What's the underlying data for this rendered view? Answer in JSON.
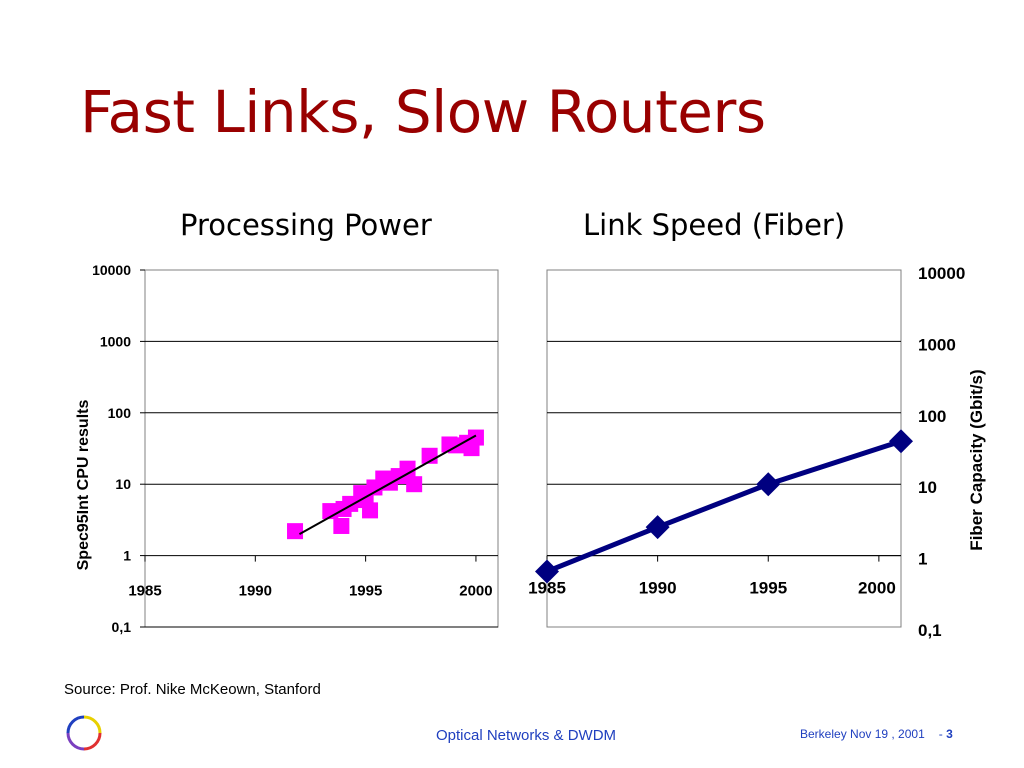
{
  "slide": {
    "title": "Fast Links, Slow Routers",
    "source": "Source: Prof. Nike McKeown, Stanford",
    "footer_center": "Optical Networks & DWDM",
    "footer_date": "Berkeley Nov 19 , 2001",
    "footer_separator": "-",
    "page_number": "3"
  },
  "chart_data": [
    {
      "type": "scatter",
      "title": "Processing Power",
      "ylabel": "Spec95Int CPU results",
      "xlabel": "",
      "y_scale": "log",
      "ylim": [
        0.1,
        10000
      ],
      "xlim": [
        1985,
        2001
      ],
      "y_ticks": [
        "10000",
        "1000",
        "100",
        "10",
        "1",
        "0,1"
      ],
      "x_ticks": [
        "1985",
        "1990",
        "1995",
        "2000"
      ],
      "grid": true,
      "marker_color": "#ff00ff",
      "trend_color": "#000000",
      "points": [
        {
          "x": 1991.8,
          "y": 2.2
        },
        {
          "x": 1993.4,
          "y": 4.2
        },
        {
          "x": 1993.9,
          "y": 2.6
        },
        {
          "x": 1994.0,
          "y": 4.5
        },
        {
          "x": 1994.3,
          "y": 5.3
        },
        {
          "x": 1994.8,
          "y": 7.5
        },
        {
          "x": 1995.0,
          "y": 6.0
        },
        {
          "x": 1995.2,
          "y": 4.3
        },
        {
          "x": 1995.4,
          "y": 9.0
        },
        {
          "x": 1995.8,
          "y": 12.0
        },
        {
          "x": 1996.1,
          "y": 10.5
        },
        {
          "x": 1996.5,
          "y": 13.0
        },
        {
          "x": 1996.9,
          "y": 16.5
        },
        {
          "x": 1997.2,
          "y": 10.0
        },
        {
          "x": 1997.9,
          "y": 25.0
        },
        {
          "x": 1998.8,
          "y": 36.0
        },
        {
          "x": 1999.1,
          "y": 35.0
        },
        {
          "x": 1999.6,
          "y": 38.0
        },
        {
          "x": 1999.8,
          "y": 32.0
        },
        {
          "x": 2000.0,
          "y": 45.0
        }
      ],
      "trend": [
        {
          "x": 1992.0,
          "y": 2.0
        },
        {
          "x": 2000.0,
          "y": 48.0
        }
      ]
    },
    {
      "type": "line",
      "title": "Link Speed (Fiber)",
      "ylabel": "Fiber Capacity (Gbit/s)",
      "xlabel": "",
      "y_scale": "log",
      "ylim": [
        0.1,
        10000
      ],
      "xlim": [
        1985,
        2001
      ],
      "y_ticks": [
        "10000",
        "1000",
        "100",
        "10",
        "1",
        "0,1"
      ],
      "x_ticks": [
        "1985",
        "1990",
        "1995",
        "2000"
      ],
      "grid": true,
      "line_color": "#000080",
      "series": [
        {
          "x": [
            1985,
            1990,
            1995,
            2001
          ],
          "y": [
            0.6,
            2.5,
            10,
            40
          ]
        }
      ]
    }
  ]
}
